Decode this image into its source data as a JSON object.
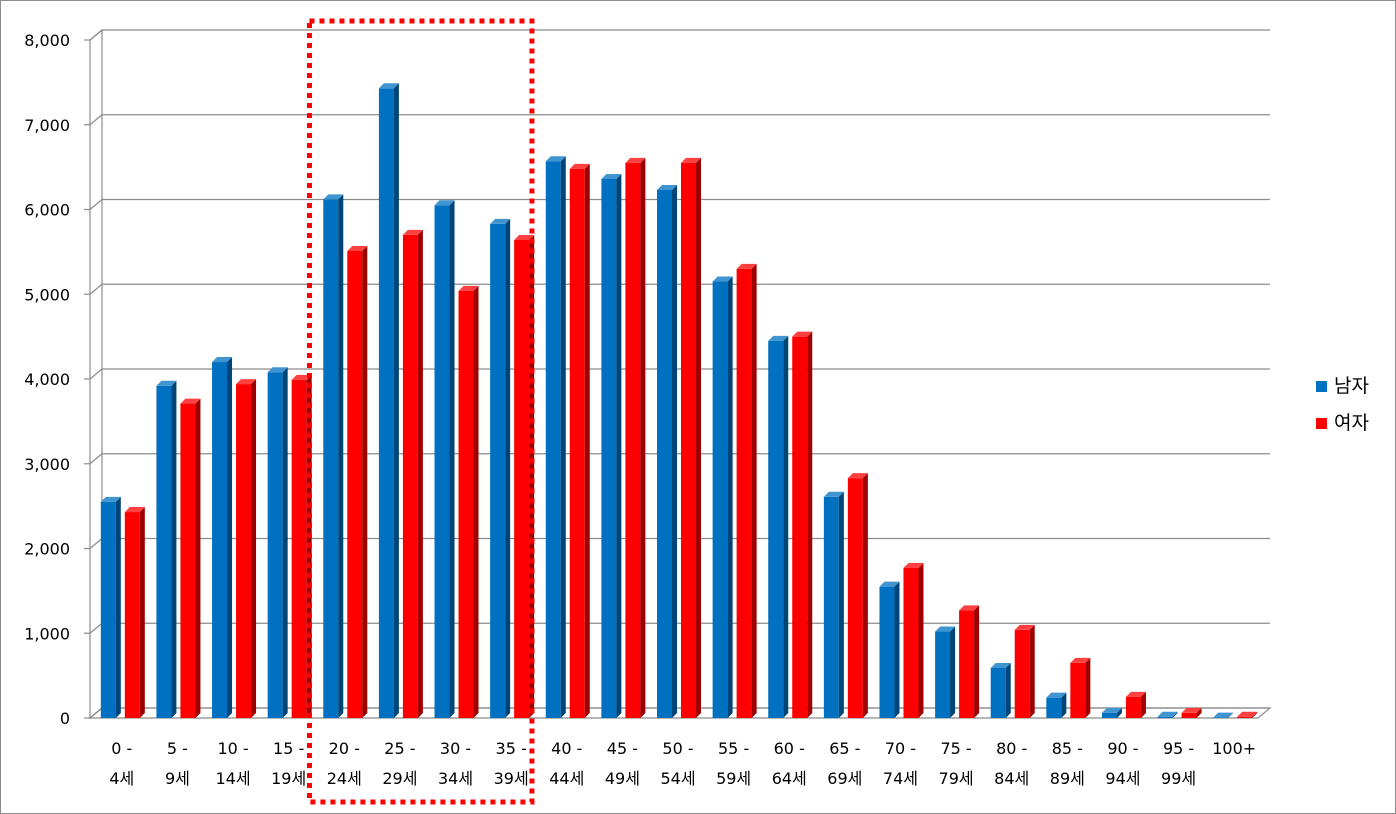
{
  "chart_data": {
    "type": "bar",
    "style": "3d-clustered-column",
    "categories": [
      [
        "0 -",
        "4세"
      ],
      [
        "5 -",
        "9세"
      ],
      [
        "10 -",
        "14세"
      ],
      [
        "15 -",
        "19세"
      ],
      [
        "20 -",
        "24세"
      ],
      [
        "25 -",
        "29세"
      ],
      [
        "30 -",
        "34세"
      ],
      [
        "35 -",
        "39세"
      ],
      [
        "40 -",
        "44세"
      ],
      [
        "45 -",
        "49세"
      ],
      [
        "50 -",
        "54세"
      ],
      [
        "55 -",
        "59세"
      ],
      [
        "60 -",
        "64세"
      ],
      [
        "65 -",
        "69세"
      ],
      [
        "70 -",
        "74세"
      ],
      [
        "75 -",
        "79세"
      ],
      [
        "80 -",
        "84세"
      ],
      [
        "85 -",
        "89세"
      ],
      [
        "90 -",
        "94세"
      ],
      [
        "95 -",
        "99세"
      ],
      [
        "100+",
        ""
      ]
    ],
    "series": [
      {
        "name": "남자",
        "color": "#0070C0",
        "values": [
          2550,
          3920,
          4200,
          4080,
          6120,
          7430,
          6050,
          5830,
          6570,
          6360,
          6230,
          5150,
          4450,
          2610,
          1550,
          1020,
          590,
          240,
          60,
          15,
          5
        ]
      },
      {
        "name": "여자",
        "color": "#FF0000",
        "values": [
          2430,
          3710,
          3940,
          3990,
          5510,
          5700,
          5040,
          5640,
          6480,
          6550,
          6550,
          5300,
          4500,
          2830,
          1770,
          1270,
          1040,
          650,
          250,
          60,
          15
        ]
      }
    ],
    "y_ticks": [
      "0",
      "1,000",
      "2,000",
      "3,000",
      "4,000",
      "5,000",
      "6,000",
      "7,000",
      "8,000"
    ],
    "ylim": [
      0,
      8000
    ],
    "grid": true,
    "legend": "right",
    "highlight": {
      "from_index": 4,
      "to_index": 7,
      "style": "dotted",
      "color": "#FF0000"
    },
    "title": "",
    "xlabel": "",
    "ylabel": ""
  }
}
